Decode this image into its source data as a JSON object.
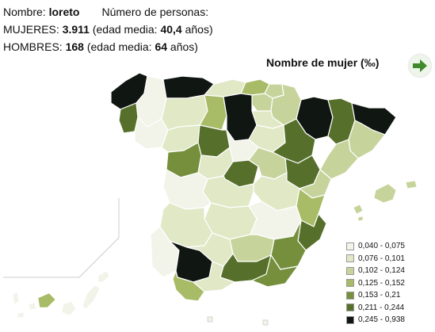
{
  "info": {
    "name_label": "Nombre:",
    "name_value": "loreto",
    "persons_label": "Número de personas:",
    "women_label": "MUJERES:",
    "women_count": "3.911",
    "women_age_prefix": "(edad media:",
    "women_age": "40,4",
    "women_age_suffix": "años)",
    "men_label": "HOMBRES:",
    "men_count": "168",
    "men_age_prefix": "(edad media:",
    "men_age": "64",
    "men_age_suffix": "años)"
  },
  "map": {
    "title": "Nombre de mujer (‰)",
    "next_icon": "arrow-right-icon",
    "colors": {
      "c1": "#f2f4ea",
      "c2": "#e0e8c6",
      "c3": "#c6d49c",
      "c4": "#a8bb66",
      "c5": "#758f3c",
      "c6": "#56702b",
      "c7": "#101612",
      "border": "#ffffff",
      "arrow": "#3f8a2a"
    }
  },
  "legend": {
    "items": [
      {
        "label": "0,040 - 0,075",
        "color": "#f2f4ea"
      },
      {
        "label": "0,076 - 0,101",
        "color": "#e0e8c6"
      },
      {
        "label": "0,102 - 0,124",
        "color": "#c6d49c"
      },
      {
        "label": "0,125 - 0,152",
        "color": "#a8bb66"
      },
      {
        "label": "0,153 - 0,21",
        "color": "#758f3c"
      },
      {
        "label": "0,211 - 0,244",
        "color": "#56702b"
      },
      {
        "label": "0,245 - 0,938",
        "color": "#101612"
      }
    ]
  }
}
